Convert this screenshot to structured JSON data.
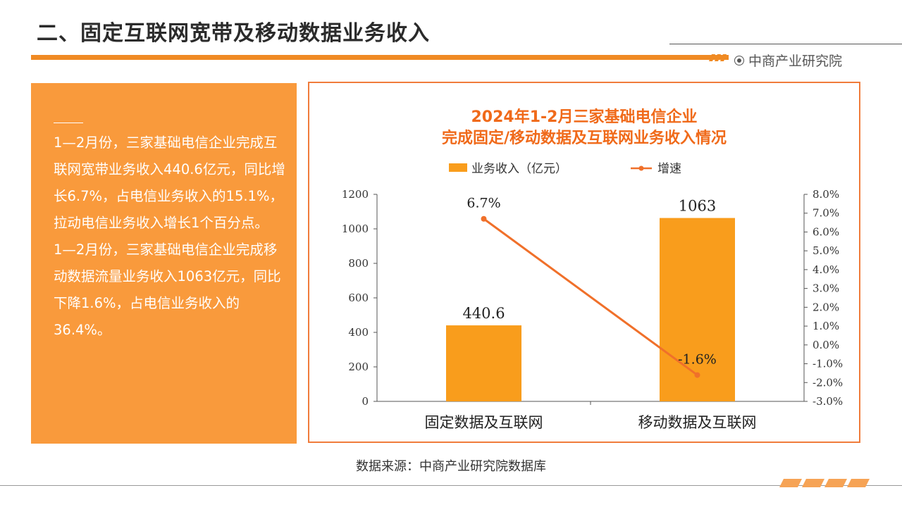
{
  "header": {
    "title": "二、固定互联网宽带及移动数据业务收入",
    "brand": "中商产业研究院"
  },
  "text_panel": {
    "paragraphs": [
      "1—2月份，三家基础电信企业完成互联网宽带业务收入440.6亿元，同比增长6.7%，占电信业务收入的15.1%，拉动电信业务收入增长1个百分点。",
      "1—2月份，三家基础电信企业完成移动数据流量业务收入1063亿元，同比下降1.6%，占电信业务收入的36.4%。"
    ]
  },
  "chart_data": {
    "type": "bar",
    "title_line1": "2024年1-2月三家基础电信企业",
    "title_line2": "完成固定/移动数据及互联网业务收入情况",
    "categories": [
      "固定数据及互联网",
      "移动数据及互联网"
    ],
    "series": [
      {
        "name": "业务收入（亿元）",
        "type": "bar",
        "axis": "left",
        "values": [
          440.6,
          1063
        ],
        "labels": [
          "440.6",
          "1063"
        ],
        "color": "#f99d1c"
      },
      {
        "name": "增速",
        "type": "line",
        "axis": "right",
        "values": [
          6.7,
          -1.6
        ],
        "labels": [
          "6.7%",
          "-1.6%"
        ],
        "color": "#f0702a"
      }
    ],
    "y_left": {
      "min": 0,
      "max": 1200,
      "step": 200,
      "ticks": [
        "0",
        "200",
        "400",
        "600",
        "800",
        "1000",
        "1200"
      ]
    },
    "y_right": {
      "min": -3,
      "max": 8,
      "step": 1,
      "ticks": [
        "-3.0%",
        "-2.0%",
        "-1.0%",
        "0.0%",
        "1.0%",
        "2.0%",
        "3.0%",
        "4.0%",
        "5.0%",
        "6.0%",
        "7.0%",
        "8.0%"
      ]
    },
    "legend_position": "top",
    "grid": false
  },
  "footer": {
    "source": "数据来源：中商产业研究院数据库"
  }
}
